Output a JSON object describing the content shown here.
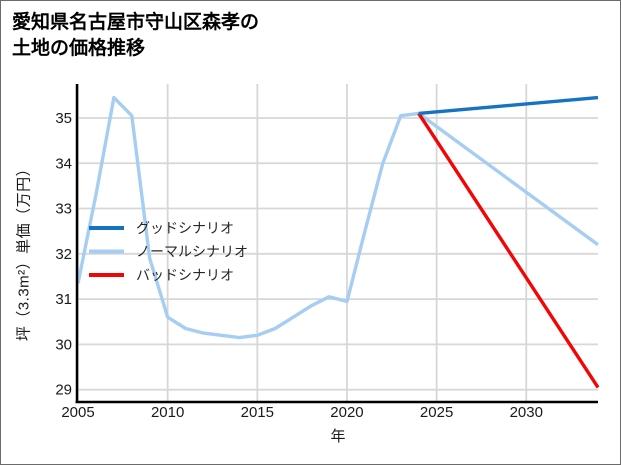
{
  "window": {
    "background": "#ffffff"
  },
  "title": {
    "line1": "愛知県名古屋市守山区森孝の",
    "line2": "土地の価格推移"
  },
  "chart_data": {
    "type": "line",
    "title": "愛知県名古屋市守山区森孝の土地の価格推移",
    "xlabel": "年",
    "ylabel": "坪（3.3m²）単価（万円）",
    "xlim": [
      2005,
      2034
    ],
    "ylim": [
      28.75,
      35.75
    ],
    "x_ticks": [
      2005,
      2010,
      2015,
      2020,
      2025,
      2030
    ],
    "y_ticks": [
      29,
      30,
      31,
      32,
      33,
      34,
      35
    ],
    "grid": true,
    "grid_color": "#d7d7d7",
    "axis_color": "#000000",
    "tick_label_color": "#1a1a1a",
    "legend_text_color": "#262626",
    "legend_position": "center-left",
    "draw_order": [
      1,
      2,
      0
    ],
    "series": [
      {
        "name": "グッドシナリオ",
        "color": "#1673c4",
        "x": [
          2024,
          2034
        ],
        "y": [
          35.1,
          35.45
        ]
      },
      {
        "name": "ノーマルシナリオ",
        "color": "#a6cdf2",
        "x": [
          2005,
          2006,
          2007,
          2008,
          2009,
          2010,
          2011,
          2012,
          2013,
          2014,
          2015,
          2016,
          2017,
          2018,
          2019,
          2020,
          2021,
          2022,
          2023,
          2024,
          2034
        ],
        "y": [
          31.35,
          33.3,
          35.45,
          35.05,
          31.9,
          30.6,
          30.35,
          30.25,
          30.2,
          30.15,
          30.2,
          30.35,
          30.6,
          30.85,
          31.05,
          30.95,
          32.5,
          34.0,
          35.05,
          35.1,
          32.2
        ]
      },
      {
        "name": "バッドシナリオ",
        "color": "#f20505",
        "x": [
          2024,
          2034
        ],
        "y": [
          35.1,
          29.05
        ]
      }
    ]
  }
}
